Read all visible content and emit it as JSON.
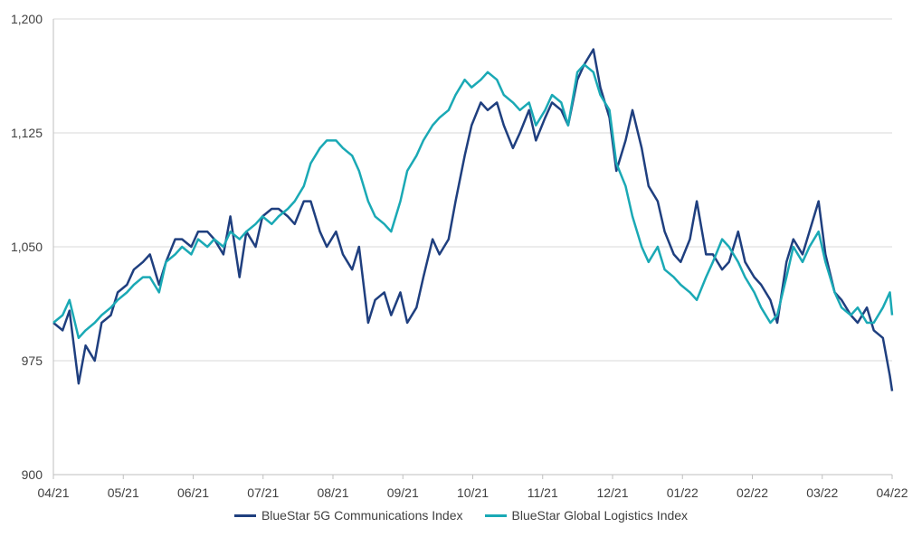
{
  "chart_data": {
    "type": "line",
    "title": "",
    "xlabel": "",
    "ylabel": "",
    "ylim": [
      900,
      1200
    ],
    "yticks": [
      900,
      975,
      1050,
      1125,
      1200
    ],
    "ytick_labels": [
      "900",
      "975",
      "1,050",
      "1,125",
      "1,200"
    ],
    "x_tick_labels": [
      "04/21",
      "05/21",
      "06/21",
      "07/21",
      "08/21",
      "09/21",
      "10/21",
      "11/21",
      "12/21",
      "01/22",
      "02/22",
      "03/22",
      "04/22"
    ],
    "grid": true,
    "legend_position": "bottom",
    "x": [
      "2021-04-01",
      "2021-04-05",
      "2021-04-08",
      "2021-04-12",
      "2021-04-15",
      "2021-04-19",
      "2021-04-22",
      "2021-04-26",
      "2021-04-29",
      "2021-05-03",
      "2021-05-06",
      "2021-05-10",
      "2021-05-13",
      "2021-05-17",
      "2021-05-20",
      "2021-05-24",
      "2021-05-27",
      "2021-05-31",
      "2021-06-03",
      "2021-06-07",
      "2021-06-10",
      "2021-06-14",
      "2021-06-17",
      "2021-06-21",
      "2021-06-24",
      "2021-06-28",
      "2021-07-01",
      "2021-07-05",
      "2021-07-08",
      "2021-07-12",
      "2021-07-15",
      "2021-07-19",
      "2021-07-22",
      "2021-07-26",
      "2021-07-29",
      "2021-08-02",
      "2021-08-05",
      "2021-08-09",
      "2021-08-12",
      "2021-08-16",
      "2021-08-19",
      "2021-08-23",
      "2021-08-26",
      "2021-08-30",
      "2021-09-02",
      "2021-09-06",
      "2021-09-09",
      "2021-09-13",
      "2021-09-16",
      "2021-09-20",
      "2021-09-23",
      "2021-09-27",
      "2021-09-30",
      "2021-10-04",
      "2021-10-07",
      "2021-10-11",
      "2021-10-14",
      "2021-10-18",
      "2021-10-21",
      "2021-10-25",
      "2021-10-28",
      "2021-11-01",
      "2021-11-04",
      "2021-11-08",
      "2021-11-11",
      "2021-11-15",
      "2021-11-18",
      "2021-11-22",
      "2021-11-25",
      "2021-11-29",
      "2021-12-02",
      "2021-12-06",
      "2021-12-09",
      "2021-12-13",
      "2021-12-16",
      "2021-12-20",
      "2021-12-23",
      "2021-12-27",
      "2021-12-30",
      "2022-01-03",
      "2022-01-06",
      "2022-01-10",
      "2022-01-13",
      "2022-01-17",
      "2022-01-20",
      "2022-01-24",
      "2022-01-27",
      "2022-01-31",
      "2022-02-03",
      "2022-02-07",
      "2022-02-10",
      "2022-02-14",
      "2022-02-17",
      "2022-02-21",
      "2022-02-24",
      "2022-02-28",
      "2022-03-03",
      "2022-03-07",
      "2022-03-10",
      "2022-03-14",
      "2022-03-17",
      "2022-03-21",
      "2022-03-24",
      "2022-03-28",
      "2022-03-31",
      "2022-04-01"
    ],
    "series": [
      {
        "name": "BlueStar 5G Communications Index",
        "color": "#1f3f7f",
        "values": [
          1000,
          995,
          1008,
          960,
          985,
          975,
          1000,
          1005,
          1020,
          1025,
          1035,
          1040,
          1045,
          1025,
          1040,
          1055,
          1055,
          1050,
          1060,
          1060,
          1055,
          1045,
          1070,
          1030,
          1060,
          1050,
          1070,
          1075,
          1075,
          1070,
          1065,
          1080,
          1080,
          1060,
          1050,
          1060,
          1045,
          1035,
          1050,
          1000,
          1015,
          1020,
          1005,
          1020,
          1000,
          1010,
          1030,
          1055,
          1045,
          1055,
          1080,
          1110,
          1130,
          1145,
          1140,
          1145,
          1130,
          1115,
          1125,
          1140,
          1120,
          1135,
          1145,
          1140,
          1130,
          1160,
          1170,
          1180,
          1155,
          1135,
          1100,
          1120,
          1140,
          1115,
          1090,
          1080,
          1060,
          1045,
          1040,
          1055,
          1080,
          1045,
          1045,
          1035,
          1040,
          1060,
          1040,
          1030,
          1025,
          1015,
          1000,
          1040,
          1055,
          1045,
          1060,
          1080,
          1045,
          1020,
          1015,
          1005,
          1000,
          1010,
          995,
          990,
          965,
          955
        ]
      },
      {
        "name": "BlueStar Global Logistics Index",
        "color": "#1aa9b5",
        "values": [
          1000,
          1005,
          1015,
          990,
          995,
          1000,
          1005,
          1010,
          1015,
          1020,
          1025,
          1030,
          1030,
          1020,
          1040,
          1045,
          1050,
          1045,
          1055,
          1050,
          1055,
          1050,
          1060,
          1055,
          1060,
          1065,
          1070,
          1065,
          1070,
          1075,
          1080,
          1090,
          1105,
          1115,
          1120,
          1120,
          1115,
          1110,
          1100,
          1080,
          1070,
          1065,
          1060,
          1080,
          1100,
          1110,
          1120,
          1130,
          1135,
          1140,
          1150,
          1160,
          1155,
          1160,
          1165,
          1160,
          1150,
          1145,
          1140,
          1145,
          1130,
          1140,
          1150,
          1145,
          1130,
          1165,
          1170,
          1165,
          1150,
          1140,
          1105,
          1090,
          1070,
          1050,
          1040,
          1050,
          1035,
          1030,
          1025,
          1020,
          1015,
          1030,
          1040,
          1055,
          1050,
          1040,
          1030,
          1020,
          1010,
          1000,
          1005,
          1030,
          1050,
          1040,
          1050,
          1060,
          1040,
          1020,
          1010,
          1005,
          1010,
          1000,
          1000,
          1010,
          1020,
          1005
        ]
      }
    ]
  }
}
